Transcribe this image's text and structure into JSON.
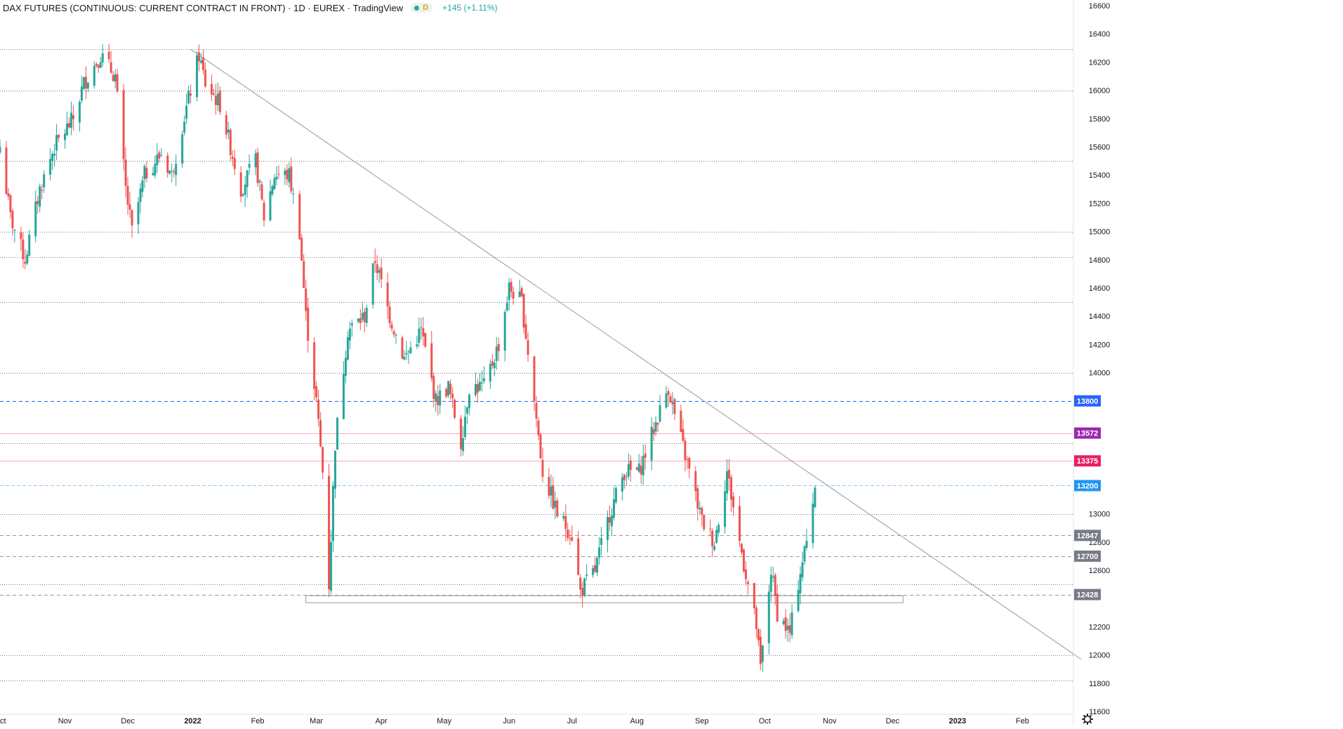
{
  "header": {
    "symbol": "DAX FUTURES (CONTINUOUS: CURRENT CONTRACT IN FRONT)",
    "interval": "1D",
    "exchange": "EUREX",
    "source": "TradingView",
    "badge_letter": "D",
    "change": "+145 (+1.11%)"
  },
  "colors": {
    "up": "#26a69a",
    "down": "#ef5350",
    "grid_dotted": "#787b86",
    "blue_dashed": "#2962ff",
    "pink_line": "#f7a8b8",
    "light_blue": "#90caf9",
    "trendline": "#9598a1",
    "text": "#131722"
  },
  "chart_data": {
    "type": "candlestick",
    "title": "DAX FUTURES (CONTINUOUS: CURRENT CONTRACT IN FRONT)",
    "interval": "1D",
    "y_range": [
      11600,
      16600
    ],
    "x_range": [
      "2021-10-01",
      "2023-02-25"
    ],
    "y_ticks": [
      16600,
      16400,
      16200,
      16000,
      15800,
      15600,
      15400,
      15200,
      15000,
      14800,
      14600,
      14400,
      14200,
      14000,
      13000,
      12800,
      12600,
      12200,
      12000,
      11800,
      11600
    ],
    "x_ticks": [
      {
        "label": "Oct",
        "date": "2021-10-01"
      },
      {
        "label": "Nov",
        "date": "2021-11-01"
      },
      {
        "label": "Dec",
        "date": "2021-12-01"
      },
      {
        "label": "2022",
        "date": "2022-01-01",
        "bold": true
      },
      {
        "label": "Feb",
        "date": "2022-02-01"
      },
      {
        "label": "Mar",
        "date": "2022-03-01"
      },
      {
        "label": "Apr",
        "date": "2022-04-01"
      },
      {
        "label": "May",
        "date": "2022-05-01"
      },
      {
        "label": "Jun",
        "date": "2022-06-01"
      },
      {
        "label": "Jul",
        "date": "2022-07-01"
      },
      {
        "label": "Aug",
        "date": "2022-08-01"
      },
      {
        "label": "Sep",
        "date": "2022-09-01"
      },
      {
        "label": "Oct",
        "date": "2022-10-01"
      },
      {
        "label": "Nov",
        "date": "2022-11-01"
      },
      {
        "label": "Dec",
        "date": "2022-12-01"
      },
      {
        "label": "2023",
        "date": "2023-01-01",
        "bold": true
      },
      {
        "label": "Feb",
        "date": "2023-02-01"
      }
    ],
    "horizontal_levels": [
      {
        "value": 16290,
        "style": "dotted"
      },
      {
        "value": 16000,
        "style": "dotted"
      },
      {
        "value": 15500,
        "style": "dotted"
      },
      {
        "value": 15000,
        "style": "dotted"
      },
      {
        "value": 14820,
        "style": "dotted"
      },
      {
        "value": 14500,
        "style": "dotted"
      },
      {
        "value": 14000,
        "style": "dotted"
      },
      {
        "value": 13800,
        "style": "blue-dashed",
        "label": "13800",
        "label_color": "#2962ff"
      },
      {
        "value": 13572,
        "style": "pink",
        "label": "13572",
        "label_color": "#9c27b0"
      },
      {
        "value": 13500,
        "style": "dotted"
      },
      {
        "value": 13375,
        "style": "pink",
        "label": "13375",
        "label_color": "#e91e63"
      },
      {
        "value": 13200,
        "style": "light-blue-dashed",
        "label": "13200",
        "label_color": "#2196f3"
      },
      {
        "value": 13000,
        "style": "dotted"
      },
      {
        "value": 12847,
        "style": "gray-dashed",
        "label": "12847",
        "label_color": "#787b86"
      },
      {
        "value": 12700,
        "style": "gray-dashed",
        "label": "12700",
        "label_color": "#787b86"
      },
      {
        "value": 12500,
        "style": "dotted"
      },
      {
        "value": 12428,
        "style": "gray-dashed",
        "label": "12428",
        "label_color": "#787b86"
      },
      {
        "value": 12000,
        "style": "dotted"
      },
      {
        "value": 11820,
        "style": "dotted"
      }
    ],
    "support_zone": {
      "from": "2022-02-24",
      "to": "2022-12-06",
      "low": 12370,
      "high": 12420
    },
    "trendline": {
      "from": {
        "date": "2021-12-31",
        "value": 16290
      },
      "to": {
        "date": "2023-03-01",
        "value": 11970
      }
    },
    "price_path": [
      [
        "2021-10-01",
        15600
      ],
      [
        "2021-10-06",
        15100
      ],
      [
        "2021-10-13",
        14800
      ],
      [
        "2021-10-20",
        15300
      ],
      [
        "2021-10-27",
        15600
      ],
      [
        "2021-11-05",
        15800
      ],
      [
        "2021-11-10",
        16050
      ],
      [
        "2021-11-18",
        16250
      ],
      [
        "2021-11-25",
        16100
      ],
      [
        "2021-11-30",
        15300
      ],
      [
        "2021-12-03",
        15000
      ],
      [
        "2021-12-09",
        15400
      ],
      [
        "2021-12-17",
        15550
      ],
      [
        "2021-12-22",
        15400
      ],
      [
        "2021-12-27",
        15750
      ],
      [
        "2022-01-04",
        16250
      ],
      [
        "2022-01-07",
        16050
      ],
      [
        "2022-01-14",
        15900
      ],
      [
        "2022-01-24",
        15300
      ],
      [
        "2022-01-31",
        15500
      ],
      [
        "2022-02-04",
        15100
      ],
      [
        "2022-02-09",
        15400
      ],
      [
        "2022-02-16",
        15400
      ],
      [
        "2022-02-21",
        15000
      ],
      [
        "2022-02-24",
        14400
      ],
      [
        "2022-03-01",
        13800
      ],
      [
        "2022-03-04",
        13300
      ],
      [
        "2022-03-07",
        12500
      ],
      [
        "2022-03-10",
        13500
      ],
      [
        "2022-03-16",
        14300
      ],
      [
        "2022-03-24",
        14400
      ],
      [
        "2022-03-29",
        14800
      ],
      [
        "2022-04-05",
        14400
      ],
      [
        "2022-04-12",
        14100
      ],
      [
        "2022-04-20",
        14300
      ],
      [
        "2022-04-27",
        13800
      ],
      [
        "2022-05-03",
        13900
      ],
      [
        "2022-05-09",
        13500
      ],
      [
        "2022-05-13",
        13900
      ],
      [
        "2022-05-20",
        13900
      ],
      [
        "2022-05-27",
        14200
      ],
      [
        "2022-06-01",
        14600
      ],
      [
        "2022-06-07",
        14500
      ],
      [
        "2022-06-13",
        13800
      ],
      [
        "2022-06-17",
        13300
      ],
      [
        "2022-06-24",
        13000
      ],
      [
        "2022-07-01",
        12850
      ],
      [
        "2022-07-05",
        12450
      ],
      [
        "2022-07-12",
        12600
      ],
      [
        "2022-07-19",
        13000
      ],
      [
        "2022-07-26",
        13300
      ],
      [
        "2022-08-02",
        13300
      ],
      [
        "2022-08-09",
        13600
      ],
      [
        "2022-08-16",
        13900
      ],
      [
        "2022-08-19",
        13700
      ],
      [
        "2022-08-26",
        13300
      ],
      [
        "2022-09-01",
        12950
      ],
      [
        "2022-09-07",
        12800
      ],
      [
        "2022-09-13",
        13300
      ],
      [
        "2022-09-19",
        12800
      ],
      [
        "2022-09-27",
        12200
      ],
      [
        "2022-09-29",
        11900
      ],
      [
        "2022-10-04",
        12600
      ],
      [
        "2022-10-07",
        12300
      ],
      [
        "2022-10-13",
        12150
      ],
      [
        "2022-10-18",
        12600
      ],
      [
        "2022-10-21",
        12800
      ],
      [
        "2022-10-25",
        13200
      ]
    ],
    "price_labels": [
      {
        "value": 13800,
        "text": "13800"
      },
      {
        "value": 13572,
        "text": "13572"
      },
      {
        "value": 13375,
        "text": "13375"
      },
      {
        "value": 13200,
        "text": "13200"
      },
      {
        "value": 12847,
        "text": "12847"
      },
      {
        "value": 12700,
        "text": "12700"
      },
      {
        "value": 12428,
        "text": "12428"
      }
    ]
  },
  "settings_icon": "gear-icon"
}
